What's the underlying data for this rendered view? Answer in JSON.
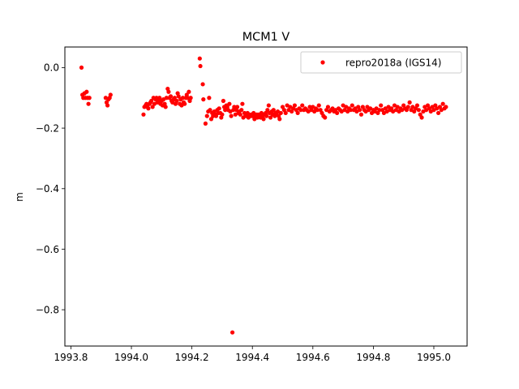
{
  "chart_data": {
    "type": "scatter",
    "title": "MCM1 V",
    "xlabel": "",
    "ylabel": "m",
    "xlim": [
      1993.78,
      1995.11
    ],
    "ylim": [
      -0.92,
      0.068
    ],
    "xticks": [
      1993.8,
      1994.0,
      1994.2,
      1994.4,
      1994.6,
      1994.8,
      1995.0
    ],
    "xtick_labels": [
      "1993.8",
      "1994.0",
      "1994.2",
      "1994.4",
      "1994.6",
      "1994.8",
      "1995.0"
    ],
    "yticks": [
      0.0,
      -0.2,
      -0.4,
      -0.6,
      -0.8
    ],
    "ytick_labels": [
      "0.0",
      "−0.2",
      "−0.4",
      "−0.6",
      "−0.8"
    ],
    "grid": false,
    "legend": {
      "position": "top-right",
      "entries": [
        "repro2018a (IGS14)"
      ]
    },
    "series": [
      {
        "name": "repro2018a (IGS14)",
        "color": "#ff0000",
        "points": [
          [
            1993.835,
            0.0
          ],
          [
            1993.838,
            -0.09
          ],
          [
            1993.841,
            -0.1
          ],
          [
            1993.845,
            -0.085
          ],
          [
            1993.848,
            -0.1
          ],
          [
            1993.852,
            -0.08
          ],
          [
            1993.855,
            -0.1
          ],
          [
            1993.858,
            -0.12
          ],
          [
            1993.861,
            -0.1
          ],
          [
            1993.915,
            -0.1
          ],
          [
            1993.918,
            -0.115
          ],
          [
            1993.921,
            -0.125
          ],
          [
            1993.924,
            -0.105
          ],
          [
            1993.928,
            -0.1
          ],
          [
            1993.931,
            -0.09
          ],
          [
            1994.04,
            -0.155
          ],
          [
            1994.043,
            -0.13
          ],
          [
            1994.047,
            -0.125
          ],
          [
            1994.05,
            -0.12
          ],
          [
            1994.053,
            -0.13
          ],
          [
            1994.056,
            -0.135
          ],
          [
            1994.06,
            -0.12
          ],
          [
            1994.063,
            -0.115
          ],
          [
            1994.066,
            -0.11
          ],
          [
            1994.07,
            -0.13
          ],
          [
            1994.073,
            -0.1
          ],
          [
            1994.076,
            -0.12
          ],
          [
            1994.08,
            -0.105
          ],
          [
            1994.083,
            -0.1
          ],
          [
            1994.086,
            -0.115
          ],
          [
            1994.09,
            -0.11
          ],
          [
            1994.093,
            -0.1
          ],
          [
            1994.096,
            -0.12
          ],
          [
            1994.1,
            -0.11
          ],
          [
            1994.103,
            -0.125
          ],
          [
            1994.106,
            -0.105
          ],
          [
            1994.11,
            -0.12
          ],
          [
            1994.113,
            -0.13
          ],
          [
            1994.116,
            -0.1
          ],
          [
            1994.12,
            -0.07
          ],
          [
            1994.123,
            -0.08
          ],
          [
            1994.126,
            -0.1
          ],
          [
            1994.13,
            -0.095
          ],
          [
            1994.133,
            -0.11
          ],
          [
            1994.136,
            -0.115
          ],
          [
            1994.14,
            -0.105
          ],
          [
            1994.143,
            -0.1
          ],
          [
            1994.146,
            -0.12
          ],
          [
            1994.15,
            -0.11
          ],
          [
            1994.153,
            -0.085
          ],
          [
            1994.156,
            -0.095
          ],
          [
            1994.16,
            -0.12
          ],
          [
            1994.163,
            -0.105
          ],
          [
            1994.166,
            -0.125
          ],
          [
            1994.17,
            -0.1
          ],
          [
            1994.173,
            -0.115
          ],
          [
            1994.176,
            -0.12
          ],
          [
            1994.18,
            -0.1
          ],
          [
            1994.183,
            -0.09
          ],
          [
            1994.186,
            -0.1
          ],
          [
            1994.19,
            -0.08
          ],
          [
            1994.193,
            -0.11
          ],
          [
            1994.196,
            -0.1
          ],
          [
            1994.226,
            0.03
          ],
          [
            1994.228,
            0.005
          ],
          [
            1994.236,
            -0.055
          ],
          [
            1994.238,
            -0.105
          ],
          [
            1994.245,
            -0.185
          ],
          [
            1994.25,
            -0.16
          ],
          [
            1994.254,
            -0.145
          ],
          [
            1994.257,
            -0.1
          ],
          [
            1994.26,
            -0.14
          ],
          [
            1994.264,
            -0.17
          ],
          [
            1994.267,
            -0.15
          ],
          [
            1994.27,
            -0.16
          ],
          [
            1994.274,
            -0.145
          ],
          [
            1994.277,
            -0.155
          ],
          [
            1994.28,
            -0.16
          ],
          [
            1994.284,
            -0.14
          ],
          [
            1994.287,
            -0.15
          ],
          [
            1994.29,
            -0.135
          ],
          [
            1994.294,
            -0.15
          ],
          [
            1994.297,
            -0.165
          ],
          [
            1994.3,
            -0.155
          ],
          [
            1994.304,
            -0.11
          ],
          [
            1994.307,
            -0.13
          ],
          [
            1994.31,
            -0.14
          ],
          [
            1994.314,
            -0.125
          ],
          [
            1994.317,
            -0.13
          ],
          [
            1994.32,
            -0.14
          ],
          [
            1994.324,
            -0.12
          ],
          [
            1994.327,
            -0.145
          ],
          [
            1994.33,
            -0.16
          ],
          [
            1994.334,
            -0.875
          ],
          [
            1994.337,
            -0.14
          ],
          [
            1994.34,
            -0.13
          ],
          [
            1994.344,
            -0.155
          ],
          [
            1994.347,
            -0.14
          ],
          [
            1994.35,
            -0.13
          ],
          [
            1994.354,
            -0.15
          ],
          [
            1994.357,
            -0.145
          ],
          [
            1994.36,
            -0.155
          ],
          [
            1994.364,
            -0.14
          ],
          [
            1994.367,
            -0.12
          ],
          [
            1994.37,
            -0.165
          ],
          [
            1994.374,
            -0.15
          ],
          [
            1994.377,
            -0.155
          ],
          [
            1994.38,
            -0.16
          ],
          [
            1994.384,
            -0.15
          ],
          [
            1994.387,
            -0.165
          ],
          [
            1994.39,
            -0.155
          ],
          [
            1994.394,
            -0.16
          ],
          [
            1994.397,
            -0.155
          ],
          [
            1994.4,
            -0.16
          ],
          [
            1994.404,
            -0.15
          ],
          [
            1994.407,
            -0.17
          ],
          [
            1994.41,
            -0.16
          ],
          [
            1994.414,
            -0.155
          ],
          [
            1994.417,
            -0.165
          ],
          [
            1994.42,
            -0.155
          ],
          [
            1994.424,
            -0.16
          ],
          [
            1994.427,
            -0.165
          ],
          [
            1994.43,
            -0.15
          ],
          [
            1994.434,
            -0.16
          ],
          [
            1994.437,
            -0.17
          ],
          [
            1994.44,
            -0.155
          ],
          [
            1994.444,
            -0.15
          ],
          [
            1994.447,
            -0.16
          ],
          [
            1994.45,
            -0.14
          ],
          [
            1994.454,
            -0.125
          ],
          [
            1994.457,
            -0.15
          ],
          [
            1994.46,
            -0.165
          ],
          [
            1994.464,
            -0.145
          ],
          [
            1994.467,
            -0.155
          ],
          [
            1994.47,
            -0.14
          ],
          [
            1994.474,
            -0.16
          ],
          [
            1994.477,
            -0.15
          ],
          [
            1994.48,
            -0.155
          ],
          [
            1994.484,
            -0.145
          ],
          [
            1994.487,
            -0.16
          ],
          [
            1994.49,
            -0.17
          ],
          [
            1994.494,
            -0.15
          ],
          [
            1994.5,
            -0.13
          ],
          [
            1994.505,
            -0.14
          ],
          [
            1994.51,
            -0.15
          ],
          [
            1994.515,
            -0.125
          ],
          [
            1994.52,
            -0.14
          ],
          [
            1994.525,
            -0.13
          ],
          [
            1994.53,
            -0.145
          ],
          [
            1994.535,
            -0.135
          ],
          [
            1994.54,
            -0.125
          ],
          [
            1994.545,
            -0.14
          ],
          [
            1994.55,
            -0.15
          ],
          [
            1994.555,
            -0.135
          ],
          [
            1994.56,
            -0.14
          ],
          [
            1994.565,
            -0.125
          ],
          [
            1994.57,
            -0.14
          ],
          [
            1994.575,
            -0.135
          ],
          [
            1994.58,
            -0.14
          ],
          [
            1994.585,
            -0.145
          ],
          [
            1994.59,
            -0.13
          ],
          [
            1994.595,
            -0.14
          ],
          [
            1994.6,
            -0.13
          ],
          [
            1994.605,
            -0.145
          ],
          [
            1994.61,
            -0.135
          ],
          [
            1994.615,
            -0.14
          ],
          [
            1994.62,
            -0.125
          ],
          [
            1994.625,
            -0.14
          ],
          [
            1994.63,
            -0.15
          ],
          [
            1994.635,
            -0.16
          ],
          [
            1994.64,
            -0.165
          ],
          [
            1994.645,
            -0.14
          ],
          [
            1994.65,
            -0.13
          ],
          [
            1994.655,
            -0.145
          ],
          [
            1994.66,
            -0.14
          ],
          [
            1994.665,
            -0.135
          ],
          [
            1994.67,
            -0.145
          ],
          [
            1994.675,
            -0.14
          ],
          [
            1994.68,
            -0.15
          ],
          [
            1994.685,
            -0.135
          ],
          [
            1994.69,
            -0.14
          ],
          [
            1994.695,
            -0.145
          ],
          [
            1994.7,
            -0.125
          ],
          [
            1994.705,
            -0.14
          ],
          [
            1994.71,
            -0.13
          ],
          [
            1994.715,
            -0.145
          ],
          [
            1994.72,
            -0.135
          ],
          [
            1994.725,
            -0.14
          ],
          [
            1994.73,
            -0.125
          ],
          [
            1994.735,
            -0.14
          ],
          [
            1994.74,
            -0.135
          ],
          [
            1994.745,
            -0.145
          ],
          [
            1994.75,
            -0.13
          ],
          [
            1994.755,
            -0.14
          ],
          [
            1994.76,
            -0.155
          ],
          [
            1994.765,
            -0.13
          ],
          [
            1994.77,
            -0.14
          ],
          [
            1994.775,
            -0.145
          ],
          [
            1994.78,
            -0.13
          ],
          [
            1994.785,
            -0.14
          ],
          [
            1994.79,
            -0.135
          ],
          [
            1994.795,
            -0.15
          ],
          [
            1994.8,
            -0.14
          ],
          [
            1994.805,
            -0.145
          ],
          [
            1994.81,
            -0.135
          ],
          [
            1994.815,
            -0.15
          ],
          [
            1994.82,
            -0.14
          ],
          [
            1994.825,
            -0.125
          ],
          [
            1994.83,
            -0.14
          ],
          [
            1994.835,
            -0.15
          ],
          [
            1994.84,
            -0.135
          ],
          [
            1994.845,
            -0.145
          ],
          [
            1994.85,
            -0.13
          ],
          [
            1994.855,
            -0.14
          ],
          [
            1994.86,
            -0.135
          ],
          [
            1994.865,
            -0.145
          ],
          [
            1994.87,
            -0.125
          ],
          [
            1994.875,
            -0.14
          ],
          [
            1994.88,
            -0.13
          ],
          [
            1994.885,
            -0.145
          ],
          [
            1994.89,
            -0.135
          ],
          [
            1994.895,
            -0.14
          ],
          [
            1994.9,
            -0.125
          ],
          [
            1994.905,
            -0.135
          ],
          [
            1994.91,
            -0.14
          ],
          [
            1994.915,
            -0.13
          ],
          [
            1994.92,
            -0.115
          ],
          [
            1994.925,
            -0.14
          ],
          [
            1994.93,
            -0.13
          ],
          [
            1994.935,
            -0.145
          ],
          [
            1994.94,
            -0.135
          ],
          [
            1994.945,
            -0.125
          ],
          [
            1994.95,
            -0.14
          ],
          [
            1994.955,
            -0.155
          ],
          [
            1994.96,
            -0.165
          ],
          [
            1994.965,
            -0.145
          ],
          [
            1994.97,
            -0.13
          ],
          [
            1994.975,
            -0.14
          ],
          [
            1994.98,
            -0.125
          ],
          [
            1994.985,
            -0.135
          ],
          [
            1994.99,
            -0.145
          ],
          [
            1994.995,
            -0.13
          ],
          [
            1995.0,
            -0.14
          ],
          [
            1995.005,
            -0.125
          ],
          [
            1995.01,
            -0.135
          ],
          [
            1995.015,
            -0.15
          ],
          [
            1995.02,
            -0.13
          ],
          [
            1995.025,
            -0.14
          ],
          [
            1995.03,
            -0.12
          ],
          [
            1995.035,
            -0.135
          ],
          [
            1995.04,
            -0.13
          ]
        ]
      }
    ]
  }
}
